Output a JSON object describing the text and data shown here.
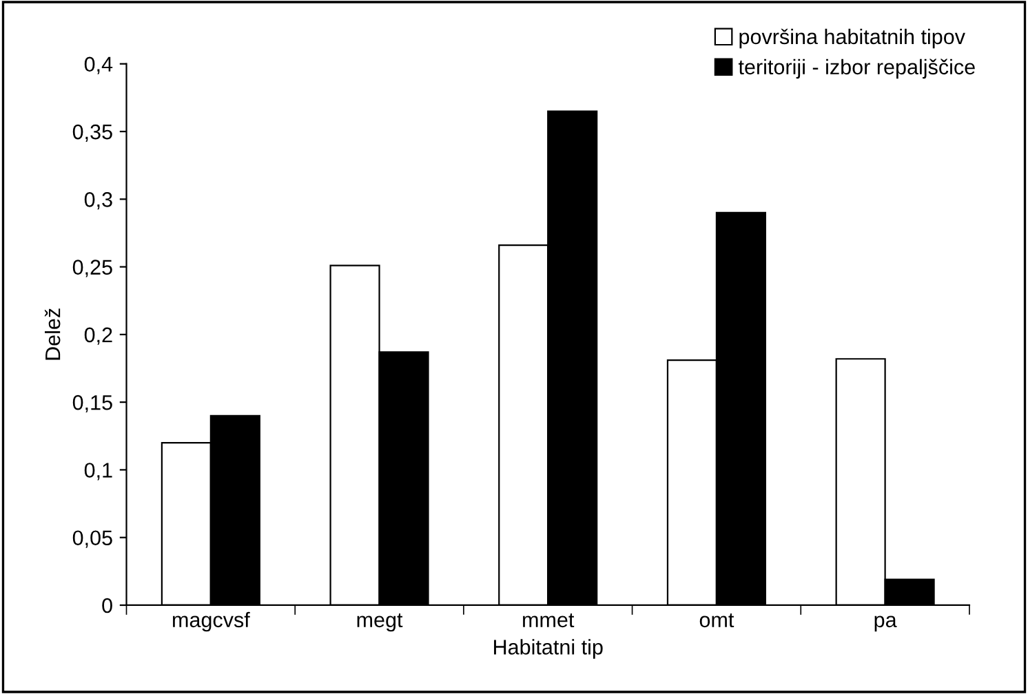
{
  "chart_data": {
    "type": "bar",
    "xlabel": "Habitatni tip",
    "ylabel": "Delež",
    "categories": [
      "magcvsf",
      "megt",
      "mmet",
      "omt",
      "pa"
    ],
    "series": [
      {
        "name": "površina habitatnih tipov",
        "color": "#ffffff",
        "values": [
          0.12,
          0.251,
          0.266,
          0.181,
          0.182
        ]
      },
      {
        "name": "teritoriji - izbor repaljščice",
        "color": "#000000",
        "values": [
          0.14,
          0.187,
          0.365,
          0.29,
          0.019
        ]
      }
    ],
    "ylim": [
      0,
      0.4
    ],
    "yticks": [
      {
        "value": 0,
        "label": "0"
      },
      {
        "value": 0.05,
        "label": "0,05"
      },
      {
        "value": 0.1,
        "label": "0,1"
      },
      {
        "value": 0.15,
        "label": "0,15"
      },
      {
        "value": 0.2,
        "label": "0,2"
      },
      {
        "value": 0.25,
        "label": "0,25"
      },
      {
        "value": 0.3,
        "label": "0,3"
      },
      {
        "value": 0.35,
        "label": "0,35"
      },
      {
        "value": 0.4,
        "label": "0,4"
      }
    ],
    "grid": false,
    "legend": "top right"
  }
}
